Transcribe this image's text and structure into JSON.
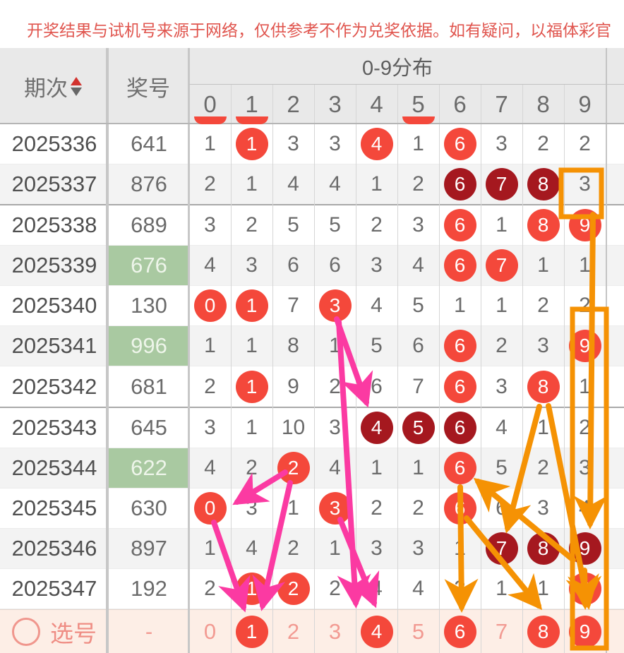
{
  "notice": "开奖结果与试机号来源于网络，仅供参考不作为兑奖依据。如有疑问，以福体彩官",
  "table": {
    "col_period": "期次",
    "col_number": "奖号",
    "col_dist": "0-9分布",
    "digit_headers": [
      "0",
      "1",
      "2",
      "3",
      "4",
      "5",
      "6",
      "7",
      "8",
      "9"
    ],
    "partial_circle_cols": [
      0,
      1,
      5
    ],
    "rows": [
      {
        "period": "2025336",
        "number": "641",
        "green": false,
        "shade": false,
        "groupend": false,
        "cells": [
          {
            "v": "1",
            "s": "p"
          },
          {
            "v": "1",
            "s": "r"
          },
          {
            "v": "3",
            "s": "p"
          },
          {
            "v": "3",
            "s": "p"
          },
          {
            "v": "4",
            "s": "r"
          },
          {
            "v": "1",
            "s": "p"
          },
          {
            "v": "6",
            "s": "r"
          },
          {
            "v": "3",
            "s": "p"
          },
          {
            "v": "2",
            "s": "p"
          },
          {
            "v": "2",
            "s": "p"
          }
        ]
      },
      {
        "period": "2025337",
        "number": "876",
        "green": false,
        "shade": true,
        "groupend": true,
        "cells": [
          {
            "v": "2",
            "s": "p"
          },
          {
            "v": "1",
            "s": "p"
          },
          {
            "v": "4",
            "s": "p"
          },
          {
            "v": "4",
            "s": "p"
          },
          {
            "v": "1",
            "s": "p"
          },
          {
            "v": "2",
            "s": "p"
          },
          {
            "v": "6",
            "s": "d"
          },
          {
            "v": "7",
            "s": "d"
          },
          {
            "v": "8",
            "s": "d"
          },
          {
            "v": "3",
            "s": "p"
          }
        ]
      },
      {
        "period": "2025338",
        "number": "689",
        "green": false,
        "shade": false,
        "groupend": false,
        "cells": [
          {
            "v": "3",
            "s": "p"
          },
          {
            "v": "2",
            "s": "p"
          },
          {
            "v": "5",
            "s": "p"
          },
          {
            "v": "5",
            "s": "p"
          },
          {
            "v": "2",
            "s": "p"
          },
          {
            "v": "3",
            "s": "p"
          },
          {
            "v": "6",
            "s": "r"
          },
          {
            "v": "1",
            "s": "p"
          },
          {
            "v": "8",
            "s": "r"
          },
          {
            "v": "9",
            "s": "r"
          }
        ]
      },
      {
        "period": "2025339",
        "number": "676",
        "green": true,
        "shade": true,
        "groupend": false,
        "cells": [
          {
            "v": "4",
            "s": "p"
          },
          {
            "v": "3",
            "s": "p"
          },
          {
            "v": "6",
            "s": "p"
          },
          {
            "v": "6",
            "s": "p"
          },
          {
            "v": "3",
            "s": "p"
          },
          {
            "v": "4",
            "s": "p"
          },
          {
            "v": "6",
            "s": "r"
          },
          {
            "v": "7",
            "s": "r"
          },
          {
            "v": "1",
            "s": "p"
          },
          {
            "v": "1",
            "s": "p"
          }
        ]
      },
      {
        "period": "2025340",
        "number": "130",
        "green": false,
        "shade": false,
        "groupend": false,
        "cells": [
          {
            "v": "0",
            "s": "r"
          },
          {
            "v": "1",
            "s": "r"
          },
          {
            "v": "7",
            "s": "p"
          },
          {
            "v": "3",
            "s": "r"
          },
          {
            "v": "4",
            "s": "p"
          },
          {
            "v": "5",
            "s": "p"
          },
          {
            "v": "1",
            "s": "p"
          },
          {
            "v": "1",
            "s": "p"
          },
          {
            "v": "2",
            "s": "p"
          },
          {
            "v": "2",
            "s": "p"
          }
        ]
      },
      {
        "period": "2025341",
        "number": "996",
        "green": true,
        "shade": true,
        "groupend": false,
        "cells": [
          {
            "v": "1",
            "s": "p"
          },
          {
            "v": "1",
            "s": "p"
          },
          {
            "v": "8",
            "s": "p"
          },
          {
            "v": "1",
            "s": "p"
          },
          {
            "v": "5",
            "s": "p"
          },
          {
            "v": "6",
            "s": "p"
          },
          {
            "v": "6",
            "s": "r"
          },
          {
            "v": "2",
            "s": "p"
          },
          {
            "v": "3",
            "s": "p"
          },
          {
            "v": "9",
            "s": "r"
          }
        ]
      },
      {
        "period": "2025342",
        "number": "681",
        "green": false,
        "shade": false,
        "groupend": true,
        "cells": [
          {
            "v": "2",
            "s": "p"
          },
          {
            "v": "1",
            "s": "r"
          },
          {
            "v": "9",
            "s": "p"
          },
          {
            "v": "2",
            "s": "p"
          },
          {
            "v": "6",
            "s": "p"
          },
          {
            "v": "7",
            "s": "p"
          },
          {
            "v": "6",
            "s": "r"
          },
          {
            "v": "3",
            "s": "p"
          },
          {
            "v": "8",
            "s": "r"
          },
          {
            "v": "1",
            "s": "p"
          }
        ]
      },
      {
        "period": "2025343",
        "number": "645",
        "green": false,
        "shade": false,
        "groupend": false,
        "cells": [
          {
            "v": "3",
            "s": "p"
          },
          {
            "v": "1",
            "s": "p"
          },
          {
            "v": "10",
            "s": "p"
          },
          {
            "v": "3",
            "s": "p"
          },
          {
            "v": "4",
            "s": "d"
          },
          {
            "v": "5",
            "s": "d"
          },
          {
            "v": "6",
            "s": "d"
          },
          {
            "v": "4",
            "s": "p"
          },
          {
            "v": "1",
            "s": "p"
          },
          {
            "v": "2",
            "s": "p"
          }
        ]
      },
      {
        "period": "2025344",
        "number": "622",
        "green": true,
        "shade": true,
        "groupend": false,
        "cells": [
          {
            "v": "4",
            "s": "p"
          },
          {
            "v": "2",
            "s": "p"
          },
          {
            "v": "2",
            "s": "r"
          },
          {
            "v": "4",
            "s": "p"
          },
          {
            "v": "1",
            "s": "p"
          },
          {
            "v": "1",
            "s": "p"
          },
          {
            "v": "6",
            "s": "r"
          },
          {
            "v": "5",
            "s": "p"
          },
          {
            "v": "2",
            "s": "p"
          },
          {
            "v": "3",
            "s": "p"
          }
        ]
      },
      {
        "period": "2025345",
        "number": "630",
        "green": false,
        "shade": false,
        "groupend": false,
        "cells": [
          {
            "v": "0",
            "s": "r"
          },
          {
            "v": "3",
            "s": "p"
          },
          {
            "v": "1",
            "s": "p"
          },
          {
            "v": "3",
            "s": "r"
          },
          {
            "v": "2",
            "s": "p"
          },
          {
            "v": "2",
            "s": "p"
          },
          {
            "v": "6",
            "s": "r"
          },
          {
            "v": "6",
            "s": "p"
          },
          {
            "v": "3",
            "s": "p"
          },
          {
            "v": "4",
            "s": "p"
          }
        ]
      },
      {
        "period": "2025346",
        "number": "897",
        "green": false,
        "shade": true,
        "groupend": false,
        "cells": [
          {
            "v": "1",
            "s": "p"
          },
          {
            "v": "4",
            "s": "p"
          },
          {
            "v": "2",
            "s": "p"
          },
          {
            "v": "1",
            "s": "p"
          },
          {
            "v": "3",
            "s": "p"
          },
          {
            "v": "3",
            "s": "p"
          },
          {
            "v": "1",
            "s": "p"
          },
          {
            "v": "7",
            "s": "d"
          },
          {
            "v": "8",
            "s": "d"
          },
          {
            "v": "9",
            "s": "d"
          }
        ]
      },
      {
        "period": "2025347",
        "number": "192",
        "green": false,
        "shade": false,
        "groupend": false,
        "cells": [
          {
            "v": "2",
            "s": "p"
          },
          {
            "v": "1",
            "s": "r"
          },
          {
            "v": "2",
            "s": "r"
          },
          {
            "v": "2",
            "s": "p"
          },
          {
            "v": "4",
            "s": "p"
          },
          {
            "v": "4",
            "s": "p"
          },
          {
            "v": "2",
            "s": "p"
          },
          {
            "v": "1",
            "s": "p"
          },
          {
            "v": "1",
            "s": "p"
          },
          {
            "v": "9",
            "s": "r"
          }
        ]
      }
    ],
    "select_row": {
      "label": "选号",
      "number": "-",
      "cells": [
        {
          "v": "0",
          "s": "t"
        },
        {
          "v": "1",
          "s": "r"
        },
        {
          "v": "2",
          "s": "t"
        },
        {
          "v": "3",
          "s": "t"
        },
        {
          "v": "4",
          "s": "r"
        },
        {
          "v": "5",
          "s": "t"
        },
        {
          "v": "6",
          "s": "r"
        },
        {
          "v": "7",
          "s": "t"
        },
        {
          "v": "8",
          "s": "r"
        },
        {
          "v": "9",
          "s": "r"
        }
      ]
    }
  },
  "colors": {
    "notice_red": "#e0554e",
    "hot_circle": "#f4483b",
    "dark_circle": "#a5181f",
    "green_cell": "#a9c9a1",
    "magenta_arrow": "#fb3aa2",
    "orange_arrow": "#f59204",
    "select_row_bg": "#fdeee6",
    "select_text_pink": "#f29a92"
  }
}
